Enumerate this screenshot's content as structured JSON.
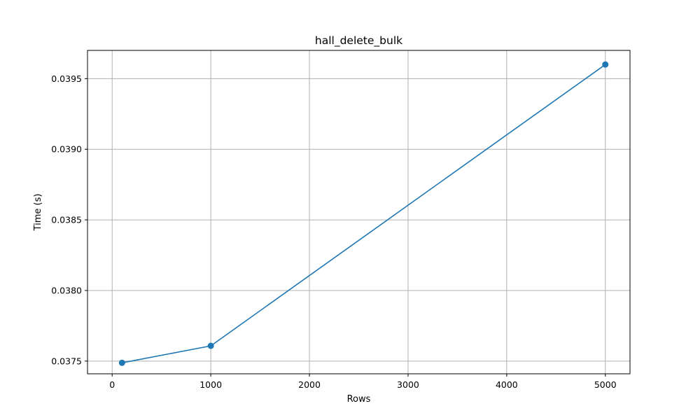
{
  "chart_data": {
    "type": "line",
    "title": "hall_delete_bulk",
    "xlabel": "Rows",
    "ylabel": "Time (s)",
    "xlim": [
      -250,
      5250
    ],
    "ylim": [
      0.03741,
      0.0397
    ],
    "xticks": [
      0,
      1000,
      2000,
      3000,
      4000,
      5000
    ],
    "xtick_labels": [
      "0",
      "1000",
      "2000",
      "3000",
      "4000",
      "5000"
    ],
    "yticks": [
      0.0375,
      0.038,
      0.0385,
      0.039,
      0.0395
    ],
    "ytick_labels": [
      "0.0375",
      "0.0380",
      "0.0385",
      "0.0390",
      "0.0395"
    ],
    "grid": true,
    "series": [
      {
        "color": "#1f77b4",
        "marker": "circle",
        "x": [
          100,
          1000,
          5000
        ],
        "y": [
          0.037488,
          0.037608,
          0.0396
        ]
      }
    ]
  }
}
